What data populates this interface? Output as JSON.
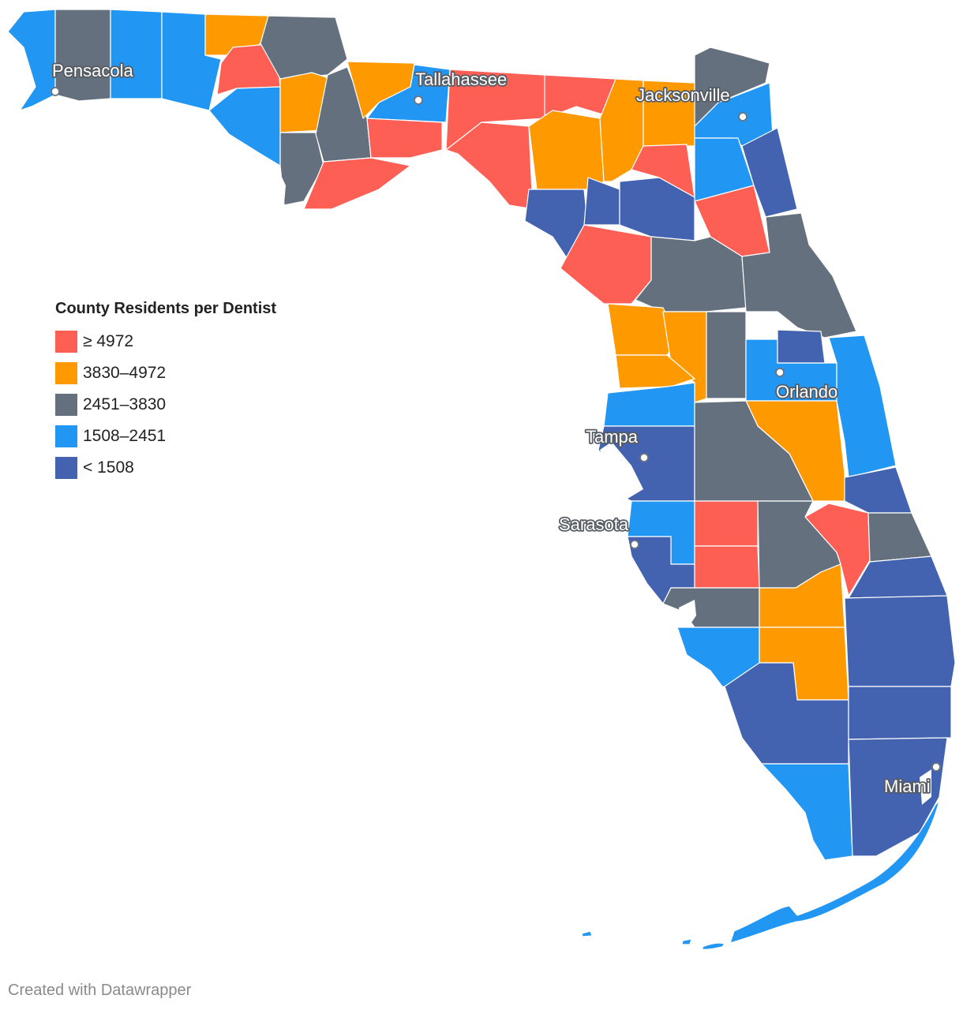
{
  "legend": {
    "title": "County Residents per Dentist",
    "bins": [
      {
        "label": "≥ 4972",
        "color": "#fe5f55"
      },
      {
        "label": "3830–4972",
        "color": "#ff9900"
      },
      {
        "label": "2451–3830",
        "color": "#65707f"
      },
      {
        "label": "1508–2451",
        "color": "#2196f3"
      },
      {
        "label": "< 1508",
        "color": "#4363b0"
      }
    ]
  },
  "cities": {
    "pensacola": "Pensacola",
    "tallahassee": "Tallahassee",
    "jacksonville": "Jacksonville",
    "orlando": "Orlando",
    "tampa": "Tampa",
    "sarasota": "Sarasota",
    "miami": "Miami"
  },
  "credit": "Created with Datawrapper"
}
